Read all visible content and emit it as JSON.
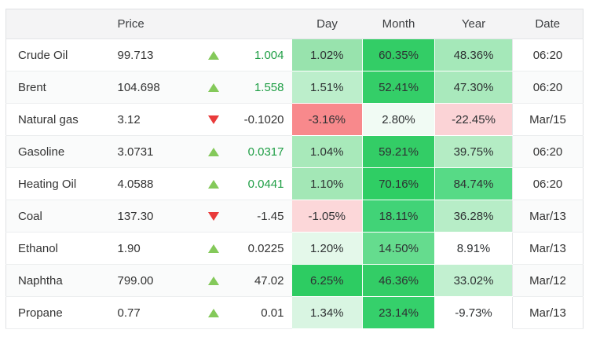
{
  "colors": {
    "up_arrow": "#84c95a",
    "down_arrow": "#e93b3b",
    "change_green": "#1f9e45",
    "change_dark": "#333333",
    "header_bg": "#f4f4f5",
    "stripe_bg": "#fafbfb"
  },
  "table": {
    "headers": {
      "name": "",
      "price": "Price",
      "day": "Day",
      "month": "Month",
      "year": "Year",
      "date": "Date"
    },
    "rows": [
      {
        "name": "Crude Oil",
        "price": "99.713",
        "direction": "up",
        "change": "1.004",
        "change_color": "green",
        "day": "1.02%",
        "day_bg": "#98e3ad",
        "month": "60.35%",
        "month_bg": "#33cd66",
        "year": "48.36%",
        "year_bg": "#a5e8b9",
        "date": "06:20"
      },
      {
        "name": "Brent",
        "price": "104.698",
        "direction": "up",
        "change": "1.558",
        "change_color": "green",
        "day": "1.51%",
        "day_bg": "#bceecb",
        "month": "52.41%",
        "month_bg": "#34ce68",
        "year": "47.30%",
        "year_bg": "#a9e9bc",
        "date": "06:20"
      },
      {
        "name": "Natural gas",
        "price": "3.12",
        "direction": "down",
        "change": "-0.1020",
        "change_color": "dark",
        "day": "-3.16%",
        "day_bg": "#f8898c",
        "month": "2.80%",
        "month_bg": "#f1fbf4",
        "year": "-22.45%",
        "year_bg": "#fbd3d6",
        "date": "Mar/15"
      },
      {
        "name": "Gasoline",
        "price": "3.0731",
        "direction": "up",
        "change": "0.0317",
        "change_color": "green",
        "day": "1.04%",
        "day_bg": "#a8e9ba",
        "month": "59.21%",
        "month_bg": "#33cd66",
        "year": "39.75%",
        "year_bg": "#b4ecc4",
        "date": "06:20"
      },
      {
        "name": "Heating Oil",
        "price": "4.0588",
        "direction": "up",
        "change": "0.0441",
        "change_color": "green",
        "day": "1.10%",
        "day_bg": "#a3e7b6",
        "month": "70.16%",
        "month_bg": "#2fce64",
        "year": "84.74%",
        "year_bg": "#57da86",
        "date": "06:20"
      },
      {
        "name": "Coal",
        "price": "137.30",
        "direction": "down",
        "change": "-1.45",
        "change_color": "dark",
        "day": "-1.05%",
        "day_bg": "#fcd7d9",
        "month": "18.11%",
        "month_bg": "#41d377",
        "year": "36.28%",
        "year_bg": "#b7edc7",
        "date": "Mar/13"
      },
      {
        "name": "Ethanol",
        "price": "1.90",
        "direction": "up",
        "change": "0.0225",
        "change_color": "dark",
        "day": "1.20%",
        "day_bg": "#e4f8ea",
        "month": "14.50%",
        "month_bg": "#65dc8e",
        "year": "8.91%",
        "year_bg": "",
        "date": "Mar/13"
      },
      {
        "name": "Naphtha",
        "price": "799.00",
        "direction": "up",
        "change": "47.02",
        "change_color": "dark",
        "day": "6.25%",
        "day_bg": "#2dcc62",
        "month": "46.36%",
        "month_bg": "#33cd66",
        "year": "33.02%",
        "year_bg": "#c2f0d0",
        "date": "Mar/12"
      },
      {
        "name": "Propane",
        "price": "0.77",
        "direction": "up",
        "change": "0.01",
        "change_color": "dark",
        "day": "1.34%",
        "day_bg": "#d9f5e2",
        "month": "23.14%",
        "month_bg": "#35d06b",
        "year": "-9.73%",
        "year_bg": "",
        "date": "Mar/13"
      }
    ]
  }
}
